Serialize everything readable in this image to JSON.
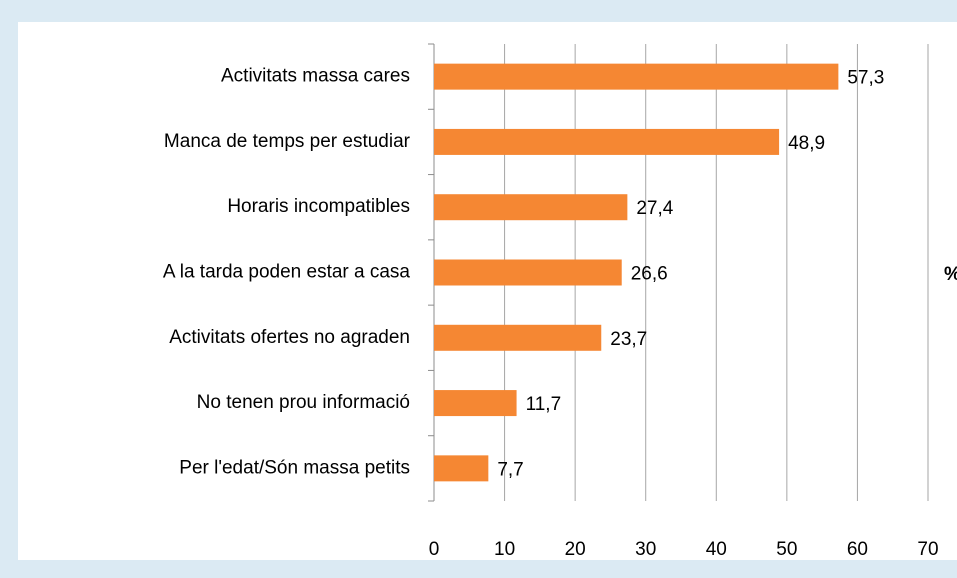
{
  "chart_data": {
    "type": "hbar",
    "categories": [
      "Activitats massa cares",
      "Manca de temps per estudiar",
      "Horaris incompatibles",
      "A la tarda poden estar a casa",
      "Activitats ofertes no agraden",
      "No tenen prou informació",
      "Per l'edat/Són massa petits"
    ],
    "values": [
      57.3,
      48.9,
      27.4,
      26.6,
      23.7,
      11.7,
      7.7
    ],
    "value_labels": [
      "57,3",
      "48,9",
      "27,4",
      "26,6",
      "23,7",
      "11,7",
      "7,7"
    ],
    "color": "#f58733",
    "xlim": [
      0,
      70
    ],
    "xticks": [
      0,
      10,
      20,
      30,
      40,
      50,
      60,
      70
    ],
    "xlabel": "%",
    "grid": true
  }
}
